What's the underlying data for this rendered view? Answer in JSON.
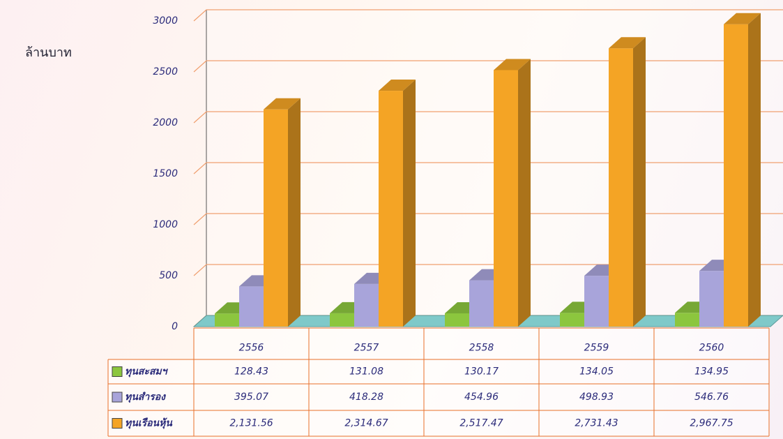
{
  "chart_data": {
    "type": "bar3d",
    "y_label": "ล้านบาท",
    "categories": [
      "2556",
      "2557",
      "2558",
      "2559",
      "2560"
    ],
    "series": [
      {
        "name": "ทุนสะสมฯ",
        "color": "#8cc63e",
        "values": [
          128.43,
          131.08,
          130.17,
          134.05,
          134.95
        ]
      },
      {
        "name": "ทุนสำรอง",
        "color": "#a8a4da",
        "values": [
          395.07,
          418.28,
          454.96,
          498.93,
          546.76
        ]
      },
      {
        "name": "ทุนเรือนหุ้น",
        "color": "#f4a425",
        "values": [
          2131.56,
          2314.67,
          2517.47,
          2731.43,
          2967.75
        ],
        "value_labels": [
          "2,131.56",
          "2,314.67",
          "2,517.47",
          "2,731.43",
          "2,967.75"
        ]
      }
    ],
    "ylim": [
      0,
      3000
    ],
    "yticks": [
      0,
      500,
      1000,
      1500,
      2000,
      2500,
      3000
    ],
    "grid": true
  }
}
